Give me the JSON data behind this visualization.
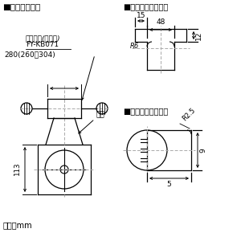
{
  "bg_color": "#ffffff",
  "line_color": "#000000",
  "section1_title": "■吊り金具位置",
  "section2_title": "■吊り金具穴詳細図",
  "section3_title": "■本体取付穴詳細図",
  "label_hook_part": "吊り金具(別売品)",
  "label_hook_model": "FY-KB071",
  "label_280": "280(260～304)",
  "label_body": "本体",
  "label_113": "113",
  "label_unit": "単位：mm",
  "label_48": "48",
  "label_15": "15",
  "label_12": "12",
  "label_R6": "R6",
  "label_R25": "R2.5",
  "label_9": "9",
  "label_5": "5"
}
